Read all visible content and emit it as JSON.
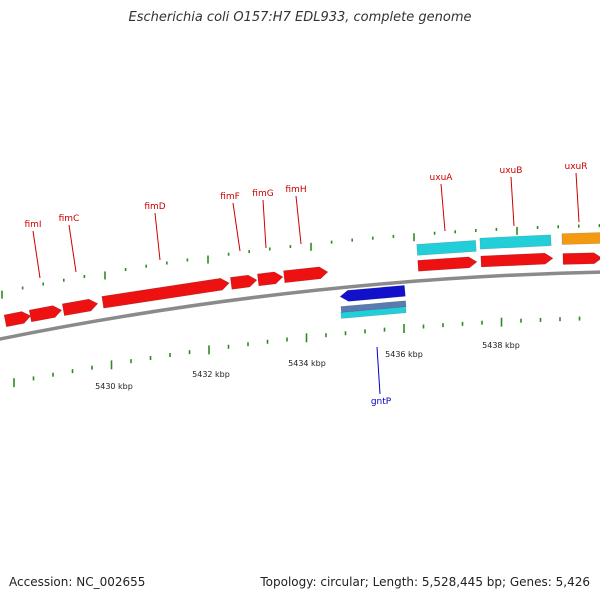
{
  "title": "Escherichia coli O157:H7 EDL933, complete genome",
  "footer": {
    "accession": "Accession: NC_002655",
    "summary": "Topology: circular; Length: 5,528,445 bp; Genes: 5,426"
  },
  "colors": {
    "backbone": "#8a8a8a",
    "tick": "#2e8b22",
    "red_gene": "#ee1111",
    "cyan_gene": "#22cfd8",
    "blue_gene": "#1111cc",
    "orange_gene": "#f39a12",
    "forward_label": "#cc0000",
    "reverse_label": "#0000cc"
  },
  "scale_labels": [
    "5430 kbp",
    "5432 kbp",
    "5434 kbp",
    "5436 kbp",
    "5438 kbp"
  ],
  "genes": [
    {
      "name": "fimI",
      "strand": "+",
      "color": "red"
    },
    {
      "name": "fimC",
      "strand": "+",
      "color": "red"
    },
    {
      "name": "fimD",
      "strand": "+",
      "color": "red"
    },
    {
      "name": "fimF",
      "strand": "+",
      "color": "red"
    },
    {
      "name": "fimG",
      "strand": "+",
      "color": "red"
    },
    {
      "name": "fimH",
      "strand": "+",
      "color": "red"
    },
    {
      "name": "gntP",
      "strand": "-",
      "color": "blue"
    },
    {
      "name": "uxuA",
      "strand": "+",
      "color": "red"
    },
    {
      "name": "uxuB",
      "strand": "+",
      "color": "red"
    },
    {
      "name": "uxuR",
      "strand": "+",
      "color": "red"
    }
  ]
}
